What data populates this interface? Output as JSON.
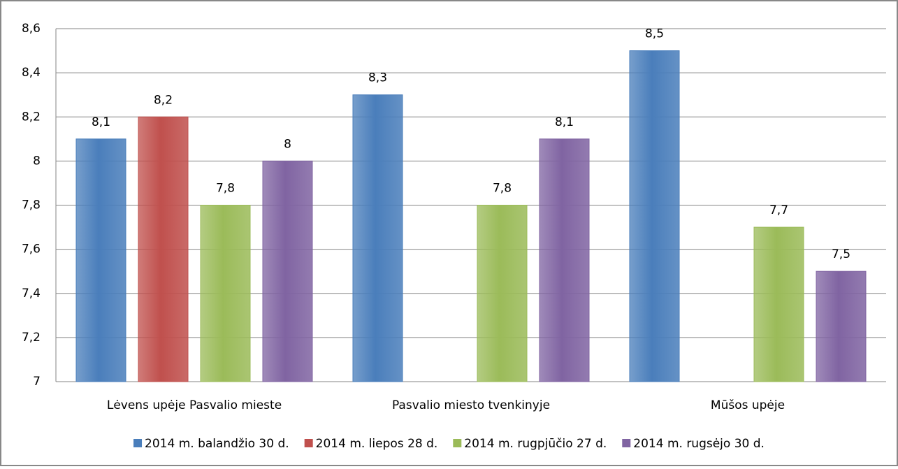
{
  "chart_data": {
    "type": "bar",
    "categories": [
      "Lėvens upėje Pasvalio mieste",
      "Pasvalio miesto tvenkinyje",
      "Mūšos upėje"
    ],
    "series": [
      {
        "name": "2014 m. balandžio 30 d.",
        "color": "#4a7ebb",
        "values": [
          8.1,
          8.3,
          8.5
        ],
        "value_labels": [
          "8,1",
          "8,3",
          "8,5"
        ]
      },
      {
        "name": "2014 m. liepos 28 d.",
        "color": "#c0504d",
        "values": [
          8.2,
          null,
          null
        ],
        "value_labels": [
          "8,2",
          null,
          null
        ]
      },
      {
        "name": "2014 m. rugpjūčio 27 d.",
        "color": "#9bbb59",
        "values": [
          7.8,
          7.8,
          7.7
        ],
        "value_labels": [
          "7,8",
          "7,8",
          "7,7"
        ]
      },
      {
        "name": "2014 m. rugsėjo 30 d.",
        "color": "#8064a2",
        "values": [
          8,
          8.1,
          7.5
        ],
        "value_labels": [
          "8",
          "8,1",
          "7,5"
        ]
      }
    ],
    "ylim": [
      7,
      8.6
    ],
    "yticks": [
      7,
      {
        "value": 7.2,
        "label": "7,2"
      },
      {
        "value": 7.4,
        "label": "7,4"
      },
      {
        "value": 7.6,
        "label": "7,6"
      },
      {
        "value": 7.8,
        "label": "7,8"
      },
      8,
      {
        "value": 8.2,
        "label": "8,2"
      },
      {
        "value": 8.4,
        "label": "8,4"
      },
      {
        "value": 8.6,
        "label": "8,6"
      }
    ],
    "grid": true,
    "legend": "bottom"
  }
}
